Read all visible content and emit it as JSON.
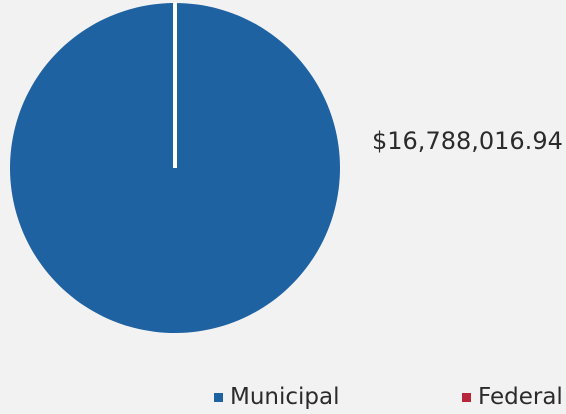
{
  "chart_data": {
    "type": "pie",
    "series": [
      {
        "labels": [
          "Municipal",
          "Federal"
        ],
        "values": [
          16788016.94,
          30000
        ],
        "colors": [
          "#1f62a1",
          "#b8263b"
        ]
      }
    ],
    "data_labels": [
      "$16,788,016.94"
    ],
    "legend": {
      "placement": "bottom-right",
      "entries": [
        "Municipal",
        "Federal"
      ]
    },
    "separator_color": "#ffffff"
  }
}
